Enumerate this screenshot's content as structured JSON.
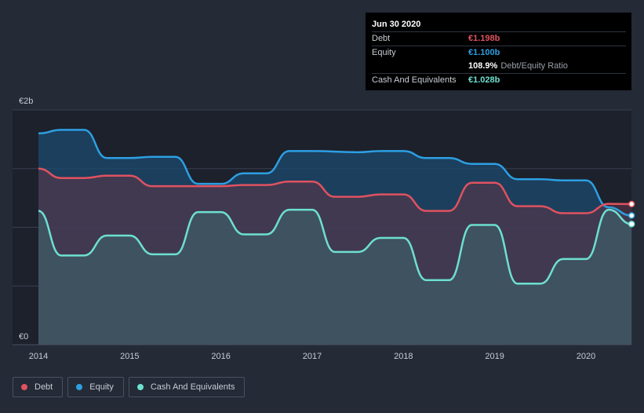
{
  "colors": {
    "debt": "#e05260",
    "equity": "#2d9fe2",
    "cash": "#6de0d0",
    "plot_bg": "#1c212c",
    "grid": "#3a4050"
  },
  "tooltip": {
    "date": "Jun 30 2020",
    "rows": [
      {
        "label": "Debt",
        "value": "€1.198b",
        "color": "#e05260"
      },
      {
        "label": "Equity",
        "value": "€1.100b",
        "color": "#2d9fe2"
      },
      {
        "label": "",
        "value": "108.9%",
        "extra": "Debt/Equity Ratio",
        "color": "#ffffff"
      },
      {
        "label": "Cash And Equivalents",
        "value": "€1.028b",
        "color": "#6de0d0"
      }
    ]
  },
  "legend": [
    {
      "label": "Debt",
      "color": "#e05260"
    },
    {
      "label": "Equity",
      "color": "#2d9fe2"
    },
    {
      "label": "Cash And Equivalents",
      "color": "#6de0d0"
    }
  ],
  "chart_data": {
    "type": "area",
    "ylim": [
      0,
      2
    ],
    "y_tick_labels": [
      {
        "value": 2,
        "label": "€2b"
      },
      {
        "value": 0,
        "label": "€0"
      }
    ],
    "x_ticks": [
      {
        "value": 2014.0,
        "label": "2014"
      },
      {
        "value": 2015.0,
        "label": "2015"
      },
      {
        "value": 2016.0,
        "label": "2016"
      },
      {
        "value": 2017.0,
        "label": "2017"
      },
      {
        "value": 2018.0,
        "label": "2018"
      },
      {
        "value": 2019.0,
        "label": "2019"
      },
      {
        "value": 2020.0,
        "label": "2020"
      }
    ],
    "xlim": [
      2014.0,
      2020.5
    ],
    "grid": true,
    "series": [
      {
        "name": "Equity",
        "key": "equity",
        "points": [
          [
            2014.0,
            1.8
          ],
          [
            2014.25,
            1.83
          ],
          [
            2014.5,
            1.83
          ],
          [
            2014.75,
            1.59
          ],
          [
            2015.0,
            1.59
          ],
          [
            2015.25,
            1.6
          ],
          [
            2015.5,
            1.6
          ],
          [
            2015.75,
            1.37
          ],
          [
            2016.0,
            1.37
          ],
          [
            2016.25,
            1.46
          ],
          [
            2016.5,
            1.46
          ],
          [
            2016.75,
            1.65
          ],
          [
            2017.0,
            1.65
          ],
          [
            2017.5,
            1.64
          ],
          [
            2017.75,
            1.65
          ],
          [
            2018.0,
            1.65
          ],
          [
            2018.25,
            1.59
          ],
          [
            2018.5,
            1.59
          ],
          [
            2018.75,
            1.54
          ],
          [
            2019.0,
            1.54
          ],
          [
            2019.25,
            1.41
          ],
          [
            2019.5,
            1.41
          ],
          [
            2019.75,
            1.4
          ],
          [
            2020.0,
            1.4
          ],
          [
            2020.25,
            1.17
          ],
          [
            2020.5,
            1.1
          ]
        ]
      },
      {
        "name": "Debt",
        "key": "debt",
        "points": [
          [
            2014.0,
            1.5
          ],
          [
            2014.25,
            1.42
          ],
          [
            2014.5,
            1.42
          ],
          [
            2014.75,
            1.44
          ],
          [
            2015.0,
            1.44
          ],
          [
            2015.25,
            1.35
          ],
          [
            2015.5,
            1.35
          ],
          [
            2015.75,
            1.35
          ],
          [
            2016.0,
            1.35
          ],
          [
            2016.25,
            1.36
          ],
          [
            2016.5,
            1.36
          ],
          [
            2016.75,
            1.39
          ],
          [
            2017.0,
            1.39
          ],
          [
            2017.25,
            1.26
          ],
          [
            2017.5,
            1.26
          ],
          [
            2017.75,
            1.28
          ],
          [
            2018.0,
            1.28
          ],
          [
            2018.25,
            1.14
          ],
          [
            2018.5,
            1.14
          ],
          [
            2018.75,
            1.38
          ],
          [
            2019.0,
            1.38
          ],
          [
            2019.25,
            1.18
          ],
          [
            2019.5,
            1.18
          ],
          [
            2019.75,
            1.12
          ],
          [
            2020.0,
            1.12
          ],
          [
            2020.25,
            1.2
          ],
          [
            2020.5,
            1.198
          ]
        ]
      },
      {
        "name": "Cash And Equivalents",
        "key": "cash",
        "points": [
          [
            2014.0,
            1.14
          ],
          [
            2014.25,
            0.76
          ],
          [
            2014.5,
            0.76
          ],
          [
            2014.75,
            0.93
          ],
          [
            2015.0,
            0.93
          ],
          [
            2015.25,
            0.77
          ],
          [
            2015.5,
            0.77
          ],
          [
            2015.75,
            1.13
          ],
          [
            2016.0,
            1.13
          ],
          [
            2016.25,
            0.94
          ],
          [
            2016.5,
            0.94
          ],
          [
            2016.75,
            1.15
          ],
          [
            2017.0,
            1.15
          ],
          [
            2017.25,
            0.79
          ],
          [
            2017.5,
            0.79
          ],
          [
            2017.75,
            0.91
          ],
          [
            2018.0,
            0.91
          ],
          [
            2018.25,
            0.55
          ],
          [
            2018.5,
            0.55
          ],
          [
            2018.75,
            1.02
          ],
          [
            2019.0,
            1.02
          ],
          [
            2019.25,
            0.52
          ],
          [
            2019.5,
            0.52
          ],
          [
            2019.75,
            0.73
          ],
          [
            2020.0,
            0.73
          ],
          [
            2020.25,
            1.15
          ],
          [
            2020.5,
            1.028
          ]
        ]
      }
    ]
  }
}
